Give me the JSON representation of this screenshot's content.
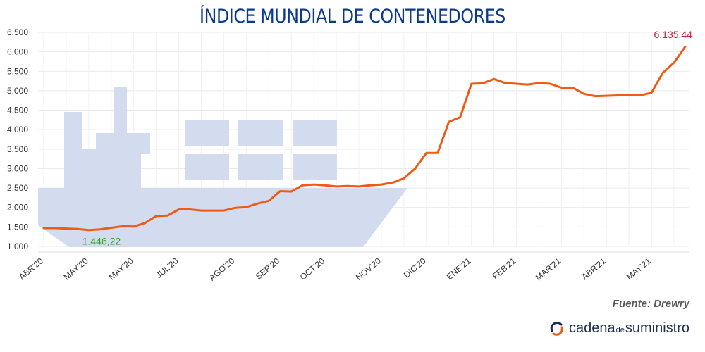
{
  "chart_data": {
    "type": "line",
    "title": "ÍNDICE MUNDIAL DE CONTENEDORES",
    "ylim": [
      1000,
      6500
    ],
    "yticks": [
      "1.000",
      "1.500",
      "2.000",
      "2.500",
      "3.000",
      "3.500",
      "4.000",
      "4.500",
      "5.000",
      "5.500",
      "6.000",
      "6.500"
    ],
    "ytick_values": [
      1000,
      1500,
      2000,
      2500,
      3000,
      3500,
      4000,
      4500,
      5000,
      5500,
      6000,
      6500
    ],
    "xtick_labels": [
      "ABR'20",
      "MAY'20",
      "MAY'20",
      "JUL'20",
      "AGO'20",
      "SEP'20",
      "OCT'20",
      "NOV'20",
      "DIC'20",
      "ENE'21",
      "FEB'21",
      "MAR'21",
      "ABR'21",
      "MAY'21"
    ],
    "xtick_index": [
      0,
      4,
      8,
      12,
      17,
      21,
      25,
      30,
      34,
      38,
      42,
      46,
      50,
      54
    ],
    "series": [
      {
        "color": "#f05a14",
        "values": [
          1470,
          1470,
          1460,
          1446.22,
          1420,
          1440,
          1480,
          1520,
          1510,
          1600,
          1780,
          1790,
          1950,
          1950,
          1920,
          1920,
          1920,
          1990,
          2010,
          2100,
          2170,
          2420,
          2410,
          2570,
          2590,
          2570,
          2540,
          2550,
          2540,
          2570,
          2590,
          2640,
          2750,
          3000,
          3400,
          3400,
          4200,
          4320,
          5180,
          5190,
          5300,
          5200,
          5180,
          5160,
          5200,
          5180,
          5080,
          5080,
          4920,
          4860,
          4870,
          4880,
          4880,
          4880,
          4950,
          5460,
          5720,
          6135.44
        ]
      }
    ],
    "annotations": [
      {
        "text": "1.446,22",
        "index": 3,
        "value": 1446.22,
        "color": "#2aa820"
      },
      {
        "text": "6.135,44",
        "index": 57,
        "value": 6135.44,
        "color": "#c0203a"
      }
    ],
    "grid": true,
    "background_illustration": "container-ship"
  },
  "source": "Fuente: Drewry",
  "brand": {
    "part1": "cadena",
    "part2": "de",
    "part3": "suministro"
  }
}
